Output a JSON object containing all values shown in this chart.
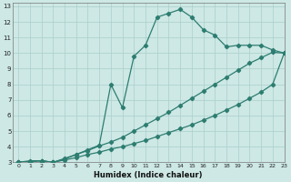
{
  "xlabel": "Humidex (Indice chaleur)",
  "ylabel": "",
  "xlim": [
    -0.5,
    23
  ],
  "ylim": [
    3,
    13.2
  ],
  "xticks": [
    0,
    1,
    2,
    3,
    4,
    5,
    6,
    7,
    8,
    9,
    10,
    11,
    12,
    13,
    14,
    15,
    16,
    17,
    18,
    19,
    20,
    21,
    22,
    23
  ],
  "yticks": [
    3,
    4,
    5,
    6,
    7,
    8,
    9,
    10,
    11,
    12,
    13
  ],
  "bg_color": "#cde8e5",
  "line_color": "#2d7d70",
  "grid_color": "#aacfcc",
  "line1_x": [
    0,
    1,
    2,
    3,
    4,
    5,
    6,
    7,
    8,
    9,
    10,
    11,
    12,
    13,
    14,
    15,
    16,
    17,
    18,
    19,
    20,
    21,
    22,
    23
  ],
  "line1_y": [
    3.0,
    3.05,
    3.1,
    3.0,
    3.15,
    3.3,
    3.5,
    3.65,
    3.85,
    4.0,
    4.2,
    4.4,
    4.65,
    4.9,
    5.15,
    5.4,
    5.7,
    6.0,
    6.35,
    6.7,
    7.1,
    7.5,
    8.0,
    10.0
  ],
  "line2_x": [
    0,
    1,
    2,
    3,
    4,
    5,
    6,
    7,
    8,
    9,
    10,
    11,
    12,
    13,
    14,
    15,
    16,
    17,
    18,
    19,
    20,
    21,
    22,
    23
  ],
  "line2_y": [
    3.0,
    3.05,
    3.1,
    3.0,
    3.2,
    3.5,
    3.8,
    4.1,
    8.0,
    6.5,
    9.8,
    10.5,
    12.3,
    12.55,
    12.8,
    12.3,
    11.5,
    11.15,
    10.4,
    10.5,
    10.5,
    10.5,
    10.2,
    10.0
  ],
  "line3_x": [
    0,
    1,
    2,
    3,
    4,
    5,
    6,
    7,
    8,
    9,
    10,
    11,
    12,
    13,
    14,
    15,
    16,
    17,
    18,
    19,
    20,
    21,
    22,
    23
  ],
  "line3_y": [
    3.0,
    3.1,
    3.1,
    3.0,
    3.25,
    3.5,
    3.75,
    4.05,
    4.3,
    4.6,
    5.0,
    5.4,
    5.8,
    6.2,
    6.65,
    7.1,
    7.55,
    8.0,
    8.45,
    8.9,
    9.35,
    9.7,
    10.05,
    10.0
  ]
}
